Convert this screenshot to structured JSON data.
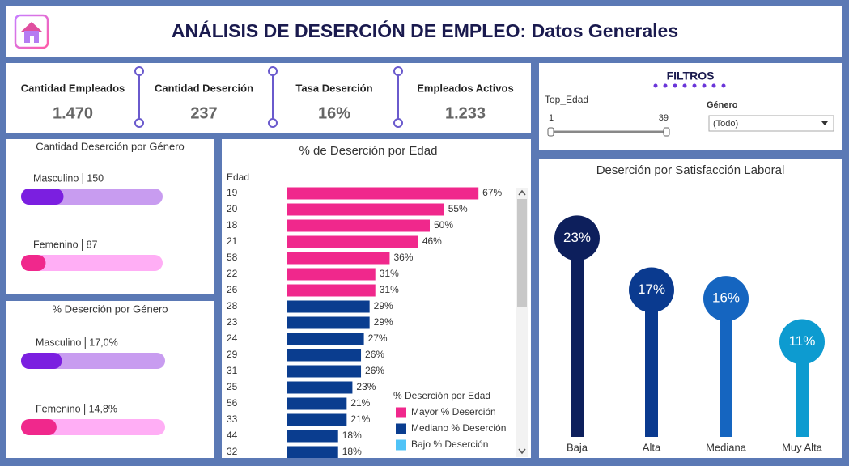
{
  "header": {
    "title": "ANÁLISIS DE DESERCIÓN DE EMPLEO: Datos Generales"
  },
  "kpis": [
    {
      "label": "Cantidad Empleados",
      "value": "1.470"
    },
    {
      "label": "Cantidad Deserción",
      "value": "237"
    },
    {
      "label": "Tasa Deserción",
      "value": "16%"
    },
    {
      "label": "Empleados Activos",
      "value": "1.233"
    }
  ],
  "filters": {
    "title": "FILTROS",
    "age": {
      "label": "Top_Edad",
      "min": 1,
      "max": 39
    },
    "genero": {
      "label": "Género",
      "value": "(Todo)"
    }
  },
  "chart_data": [
    {
      "type": "progress",
      "title": "Cantidad Deserción por Género",
      "categories": [
        "Masculino",
        "Femenino"
      ],
      "values": [
        150,
        87
      ],
      "colors": [
        "#7b1fe0",
        "#f0288c"
      ],
      "track_colors": [
        "#c89cf0",
        "#ffaef5"
      ],
      "xlim": [
        0,
        500
      ]
    },
    {
      "type": "progress",
      "title": "% Deserción por Género",
      "categories": [
        "Masculino",
        "Femenino"
      ],
      "values": [
        17.0,
        14.8
      ],
      "value_labels": [
        "17,0%",
        "14,8%"
      ],
      "colors": [
        "#7b1fe0",
        "#f0288c"
      ],
      "track_colors": [
        "#c89cf0",
        "#ffaef5"
      ],
      "xlim": [
        0,
        60
      ]
    },
    {
      "type": "hbar",
      "title": "% de Deserción por Edad",
      "y_label": "Edad",
      "legend_title": "% Deserción por Edad",
      "categories": [
        "19",
        "20",
        "18",
        "21",
        "58",
        "22",
        "26",
        "28",
        "23",
        "24",
        "29",
        "31",
        "25",
        "56",
        "33",
        "44",
        "32"
      ],
      "xlim": [
        0,
        100
      ],
      "series": [
        {
          "name": "Mayor % Deserción",
          "color": "#f0288c",
          "values": [
            67,
            55,
            50,
            46,
            36,
            31,
            31,
            null,
            null,
            null,
            null,
            null,
            null,
            null,
            null,
            null,
            null
          ],
          "value_labels": [
            "67%",
            "55%",
            "50%",
            "46%",
            "36%",
            "31%",
            "31%",
            null,
            null,
            null,
            null,
            null,
            null,
            null,
            null,
            null,
            null
          ]
        },
        {
          "name": "Mediano % Deserción",
          "color": "#0a3d8f",
          "values": [
            null,
            null,
            null,
            null,
            null,
            null,
            null,
            29,
            29,
            27,
            26,
            26,
            23,
            21,
            21,
            18,
            18
          ],
          "value_labels": [
            null,
            null,
            null,
            null,
            null,
            null,
            null,
            "29%",
            "29%",
            "27%",
            "26%",
            "26%",
            "23%",
            "21%",
            "21%",
            "18%",
            "18%"
          ]
        },
        {
          "name": "Bajo % Deserción",
          "color": "#4fc3f7",
          "values": [
            null,
            null,
            null,
            null,
            null,
            null,
            null,
            null,
            null,
            null,
            null,
            null,
            null,
            null,
            null,
            null,
            null
          ],
          "value_labels": [
            null,
            null,
            null,
            null,
            null,
            null,
            null,
            null,
            null,
            null,
            null,
            null,
            null,
            null,
            null,
            null,
            null
          ]
        }
      ]
    },
    {
      "type": "lollipop",
      "title": "Deserción por Satisfacción Laboral",
      "categories": [
        "Baja",
        "Alta",
        "Mediana",
        "Muy Alta"
      ],
      "values": [
        23,
        17,
        16,
        11
      ],
      "value_labels": [
        "23%",
        "17%",
        "16%",
        "11%"
      ],
      "colors": [
        "#0d1f5c",
        "#0a3a8f",
        "#1565c0",
        "#0d9bd0"
      ],
      "ylim": [
        0,
        25
      ]
    }
  ]
}
